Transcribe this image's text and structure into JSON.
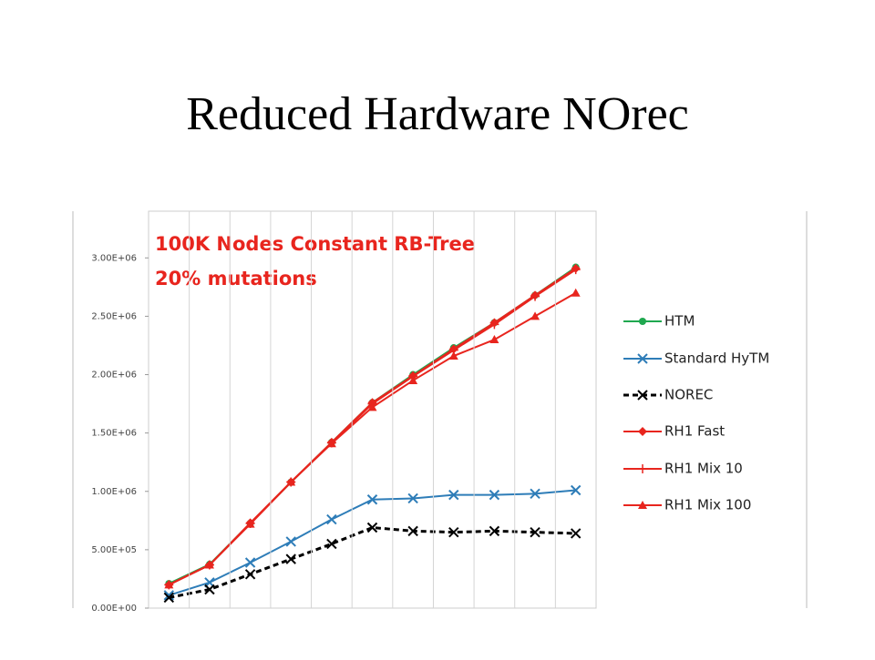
{
  "title": "Reduced Hardware NOrec",
  "chart_data": {
    "type": "line",
    "annotation_lines": [
      "100K Nodes Constant RB-Tree ",
      "20% mutations "
    ],
    "categories": [
      null,
      null,
      null,
      null,
      null,
      null,
      null,
      null,
      null,
      null,
      null
    ],
    "ylim": [
      0,
      3400000
    ],
    "yticks": [
      {
        "value": 0,
        "label": "0.00E+00"
      },
      {
        "value": 500000,
        "label": "5.00E+05"
      },
      {
        "value": 1000000,
        "label": "1.00E+06"
      },
      {
        "value": 1500000,
        "label": "1.50E+06"
      },
      {
        "value": 2000000,
        "label": "2.00E+06"
      },
      {
        "value": 2500000,
        "label": "2.50E+06"
      },
      {
        "value": 3000000,
        "label": "3.00E+06"
      }
    ],
    "grid": true,
    "legend": "right",
    "series": [
      {
        "name": "HTM ",
        "color": "#1fa84f",
        "marker": "circle",
        "values": [
          210000,
          375000,
          727000,
          1078000,
          1420000,
          1760000,
          2000000,
          2230000,
          2445000,
          2680000,
          2920000
        ]
      },
      {
        "name": "Standard HyTM ",
        "color": "#2e7db8",
        "marker": "x",
        "values": [
          110000,
          220000,
          390000,
          570000,
          760000,
          930000,
          940000,
          970000,
          970000,
          980000,
          1010000
        ]
      },
      {
        "name": "NOREC ",
        "color": "#000000",
        "marker": "x",
        "dash": true,
        "values": [
          90000,
          160000,
          290000,
          420000,
          550000,
          690000,
          660000,
          650000,
          660000,
          650000,
          640000
        ]
      },
      {
        "name": "RH1 Fast ",
        "color": "#e8251e",
        "marker": "diamond",
        "values": [
          200000,
          370000,
          730000,
          1080000,
          1420000,
          1760000,
          1990000,
          2220000,
          2445000,
          2680000,
          2910000
        ]
      },
      {
        "name": "RH1 Mix 10 ",
        "color": "#e8251e",
        "marker": "plus",
        "values": [
          200000,
          370000,
          725000,
          1080000,
          1415000,
          1750000,
          1985000,
          2210000,
          2430000,
          2670000,
          2900000
        ]
      },
      {
        "name": "RH1 Mix 100 ",
        "color": "#e8251e",
        "marker": "triangle",
        "values": [
          200000,
          370000,
          720000,
          1080000,
          1410000,
          1720000,
          1950000,
          2160000,
          2300000,
          2500000,
          2700000
        ]
      }
    ]
  }
}
